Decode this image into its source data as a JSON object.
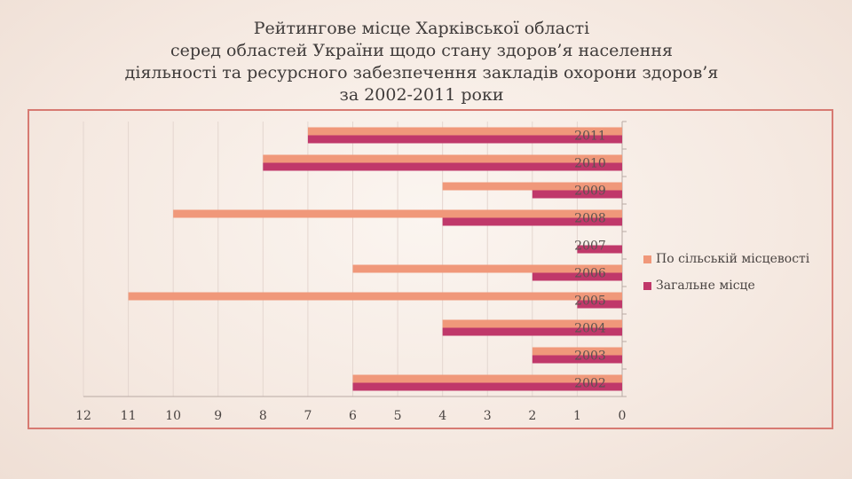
{
  "title_lines": [
    "Рейтингове місце Харківської області",
    "серед областей України щодо стану здоров’я населення",
    "діяльності та ресурсного забезпечення закладів охорони здоров’я",
    "за 2002-2011 роки"
  ],
  "chart_data": {
    "type": "bar",
    "orientation": "horizontal",
    "x_reversed": true,
    "xlim": [
      0,
      12
    ],
    "xticks": [
      "12",
      "11",
      "10",
      "9",
      "8",
      "7",
      "6",
      "5",
      "4",
      "3",
      "2",
      "1",
      "0"
    ],
    "categories": [
      "2011",
      "2010",
      "2009",
      "2008",
      "2007",
      "2006",
      "2005",
      "2004",
      "2003",
      "2002"
    ],
    "series": [
      {
        "name": "По сільській місцевості",
        "color": "#f0987a",
        "values": [
          7,
          8,
          4,
          10,
          0,
          6,
          11,
          4,
          2,
          6
        ]
      },
      {
        "name": "Загальне місце",
        "color": "#c0386a",
        "values": [
          7,
          8,
          2,
          4,
          1,
          2,
          1,
          4,
          2,
          6
        ]
      }
    ],
    "grid": "vertical",
    "legend_position": "right"
  }
}
